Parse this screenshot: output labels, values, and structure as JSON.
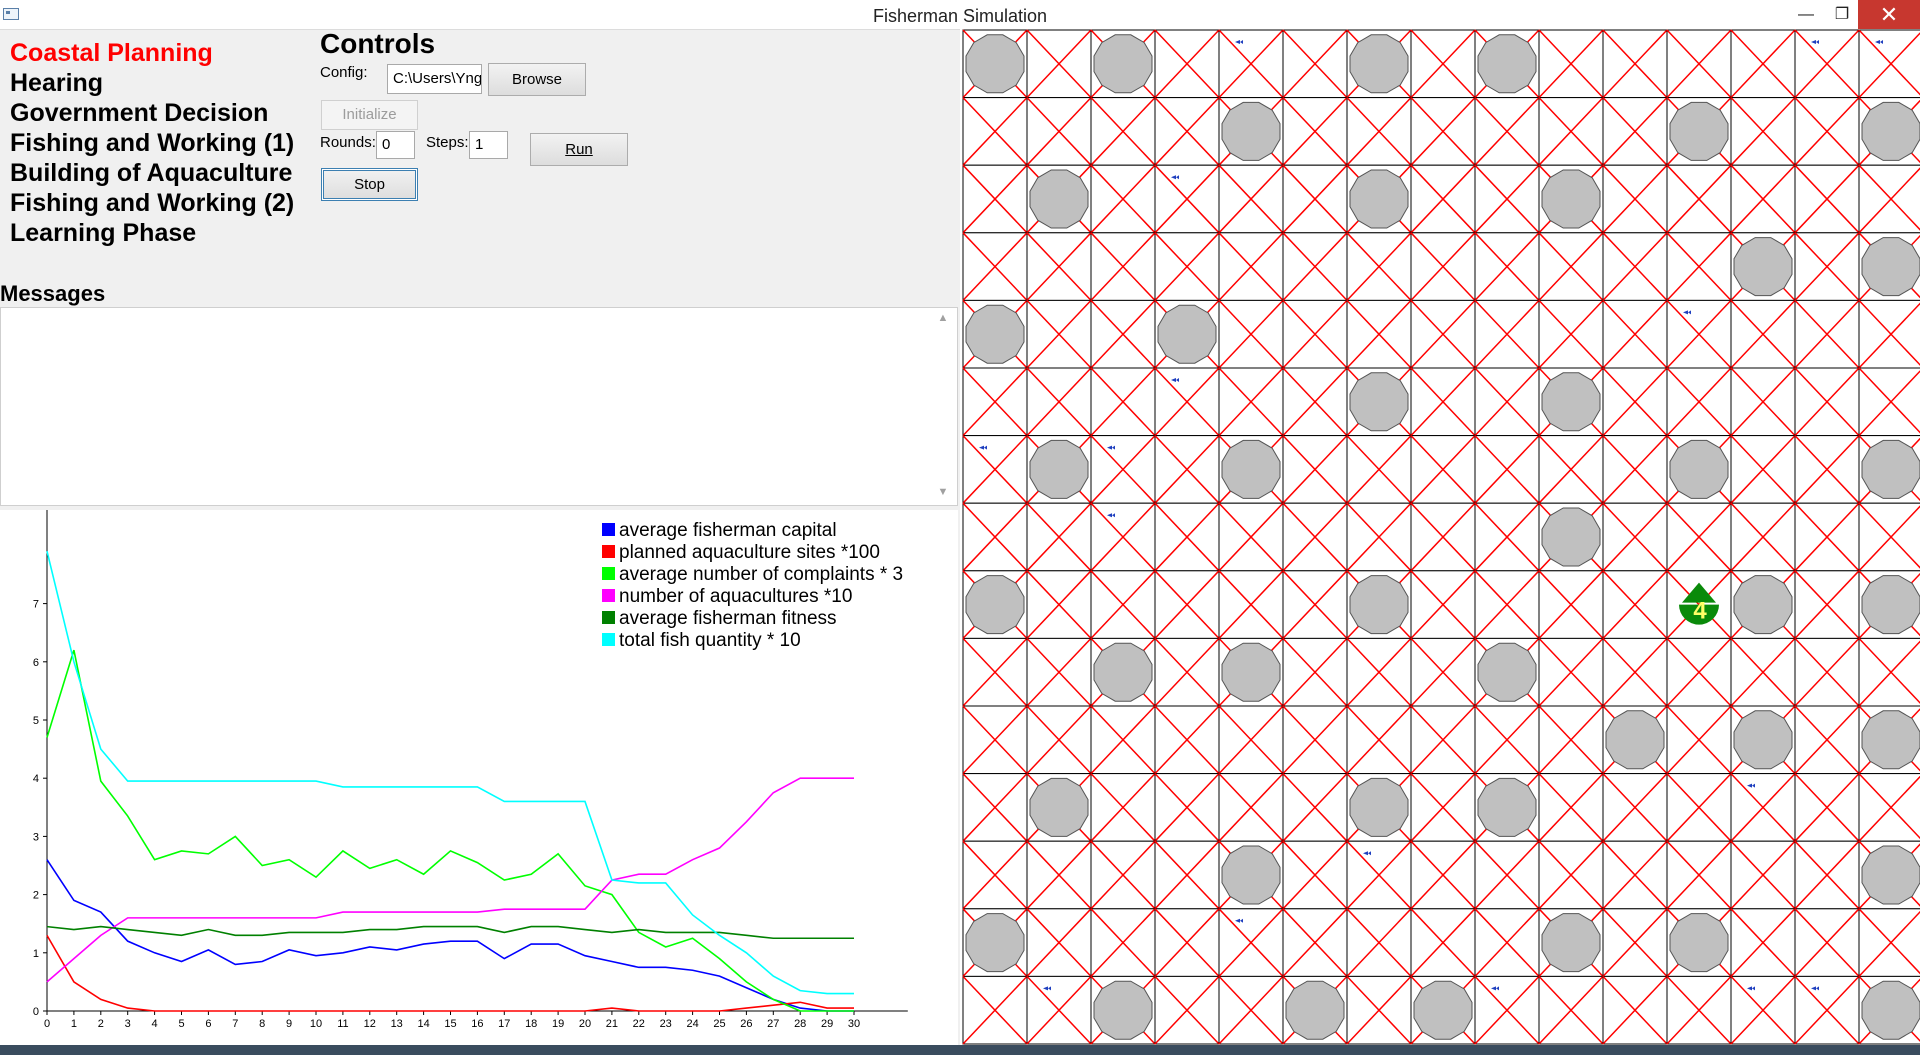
{
  "window": {
    "title": "Fisherman Simulation",
    "min_glyph": "—",
    "max_glyph": "❐",
    "close_glyph": "✕"
  },
  "phases": [
    {
      "label": "Coastal Planning",
      "active": true
    },
    {
      "label": "Hearing",
      "active": false
    },
    {
      "label": "Government Decision",
      "active": false
    },
    {
      "label": "Fishing and Working (1)",
      "active": false
    },
    {
      "label": "Building of Aquaculture",
      "active": false
    },
    {
      "label": "Fishing and Working (2)",
      "active": false
    },
    {
      "label": "Learning Phase",
      "active": false
    }
  ],
  "controls": {
    "title": "Controls",
    "config_label": "Config:",
    "config_value": "C:\\Users\\Yng",
    "browse_label": "Browse",
    "initialize_label": "Initialize",
    "rounds_label": "Rounds:",
    "rounds_value": "0",
    "steps_label": "Steps:",
    "steps_value": "1",
    "run_label": "Run",
    "stop_label": "Stop"
  },
  "messages": {
    "title": "Messages",
    "text": ""
  },
  "colors": {
    "active_phase": "#ff0000",
    "grid_cross": "#ff0000",
    "grid_line": "#000000",
    "rock_fill": "#c0c0c0",
    "fish": "#1f3fbf",
    "boat_green": "#0a8a0a",
    "boat_number": "#ffff66"
  },
  "chart_data": {
    "type": "line",
    "x": [
      0,
      1,
      2,
      3,
      4,
      5,
      6,
      7,
      8,
      9,
      10,
      11,
      12,
      13,
      14,
      15,
      16,
      17,
      18,
      19,
      20,
      21,
      22,
      23,
      24,
      25,
      26,
      27,
      28,
      29,
      30
    ],
    "x_ticks": [
      "0",
      "1",
      "2",
      "3",
      "4",
      "5",
      "6",
      "7",
      "8",
      "9",
      "10",
      "11",
      "12",
      "13",
      "14",
      "15",
      "16",
      "17",
      "18",
      "19",
      "20",
      "21",
      "22",
      "23",
      "24",
      "25",
      "26",
      "27",
      "28",
      "29",
      "30"
    ],
    "y_ticks": [
      "0",
      "1",
      "2",
      "3",
      "4",
      "5",
      "6",
      "7"
    ],
    "ylim": [
      0,
      8
    ],
    "xlim": [
      0,
      32
    ],
    "legend_position": "top-right",
    "series": [
      {
        "name": "average fisherman capital",
        "color": "#0000ff",
        "values": [
          2.6,
          1.9,
          1.7,
          1.2,
          1.0,
          0.85,
          1.05,
          0.8,
          0.85,
          1.05,
          0.95,
          1.0,
          1.1,
          1.05,
          1.15,
          1.2,
          1.2,
          0.9,
          1.15,
          1.15,
          0.95,
          0.85,
          0.75,
          0.75,
          0.7,
          0.6,
          0.4,
          0.2,
          0.05,
          0.0,
          0.0
        ]
      },
      {
        "name": "planned aquaculture sites *100",
        "color": "#ff0000",
        "values": [
          1.3,
          0.5,
          0.2,
          0.05,
          0,
          0,
          0,
          0,
          0,
          0,
          0,
          0,
          0,
          0,
          0,
          0,
          0,
          0,
          0,
          0,
          0,
          0.05,
          0,
          0,
          0,
          0,
          0.05,
          0.1,
          0.15,
          0.05,
          0.05
        ]
      },
      {
        "name": "average number of complaints * 3",
        "color": "#00ff00",
        "values": [
          4.7,
          6.2,
          3.95,
          3.35,
          2.6,
          2.75,
          2.7,
          3.0,
          2.5,
          2.6,
          2.3,
          2.75,
          2.45,
          2.6,
          2.35,
          2.75,
          2.55,
          2.25,
          2.35,
          2.7,
          2.15,
          2.0,
          1.35,
          1.1,
          1.25,
          0.9,
          0.5,
          0.2,
          0.0,
          0.0,
          0.0
        ]
      },
      {
        "name": "number of aquacultures *10",
        "color": "#ff00ff",
        "values": [
          0.5,
          0.9,
          1.3,
          1.6,
          1.6,
          1.6,
          1.6,
          1.6,
          1.6,
          1.6,
          1.6,
          1.7,
          1.7,
          1.7,
          1.7,
          1.7,
          1.7,
          1.75,
          1.75,
          1.75,
          1.75,
          2.25,
          2.35,
          2.35,
          2.6,
          2.8,
          3.25,
          3.75,
          4.0,
          4.0,
          4.0
        ]
      },
      {
        "name": "average fisherman fitness",
        "color": "#008000",
        "values": [
          1.45,
          1.4,
          1.45,
          1.4,
          1.35,
          1.3,
          1.4,
          1.3,
          1.3,
          1.35,
          1.35,
          1.35,
          1.4,
          1.4,
          1.45,
          1.45,
          1.45,
          1.35,
          1.45,
          1.45,
          1.4,
          1.35,
          1.4,
          1.35,
          1.35,
          1.35,
          1.3,
          1.25,
          1.25,
          1.25,
          1.25
        ]
      },
      {
        "name": "total fish quantity * 10",
        "color": "#00ffff",
        "values": [
          7.9,
          6.0,
          4.5,
          3.95,
          3.95,
          3.95,
          3.95,
          3.95,
          3.95,
          3.95,
          3.95,
          3.85,
          3.85,
          3.85,
          3.85,
          3.85,
          3.85,
          3.6,
          3.6,
          3.6,
          3.6,
          2.25,
          2.2,
          2.2,
          1.65,
          1.3,
          1.0,
          0.6,
          0.35,
          0.3,
          0.3
        ]
      }
    ]
  },
  "grid": {
    "cols": 15,
    "rows": 15,
    "rocks": [
      [
        0,
        0
      ],
      [
        2,
        0
      ],
      [
        6,
        0
      ],
      [
        8,
        0
      ],
      [
        4,
        1
      ],
      [
        11,
        1
      ],
      [
        14,
        1
      ],
      [
        1,
        2
      ],
      [
        6,
        2
      ],
      [
        9,
        2
      ],
      [
        12,
        3
      ],
      [
        14,
        3
      ],
      [
        0,
        4
      ],
      [
        3,
        4
      ],
      [
        6,
        5
      ],
      [
        9,
        5
      ],
      [
        1,
        6
      ],
      [
        4,
        6
      ],
      [
        11,
        6
      ],
      [
        14,
        6
      ],
      [
        9,
        7
      ],
      [
        0,
        8
      ],
      [
        6,
        8
      ],
      [
        12,
        8
      ],
      [
        14,
        8
      ],
      [
        2,
        9
      ],
      [
        4,
        9
      ],
      [
        8,
        9
      ],
      [
        10,
        10
      ],
      [
        12,
        10
      ],
      [
        14,
        10
      ],
      [
        1,
        11
      ],
      [
        6,
        11
      ],
      [
        8,
        11
      ],
      [
        4,
        12
      ],
      [
        14,
        12
      ],
      [
        0,
        13
      ],
      [
        9,
        13
      ],
      [
        11,
        13
      ],
      [
        2,
        14
      ],
      [
        5,
        14
      ],
      [
        7,
        14
      ],
      [
        14,
        14
      ]
    ],
    "fish": [
      [
        4,
        0
      ],
      [
        13,
        0
      ],
      [
        14,
        0
      ],
      [
        3,
        2
      ],
      [
        0,
        4
      ],
      [
        11,
        4
      ],
      [
        3,
        5
      ],
      [
        0,
        6
      ],
      [
        2,
        6
      ],
      [
        2,
        7
      ],
      [
        12,
        11
      ],
      [
        11,
        13
      ],
      [
        2,
        14
      ],
      [
        8,
        14
      ],
      [
        12,
        14
      ],
      [
        13,
        14
      ],
      [
        1,
        14
      ],
      [
        4,
        13
      ],
      [
        6,
        12
      ]
    ],
    "boats": [
      {
        "col": 11,
        "row": 8,
        "label": "4"
      }
    ]
  }
}
